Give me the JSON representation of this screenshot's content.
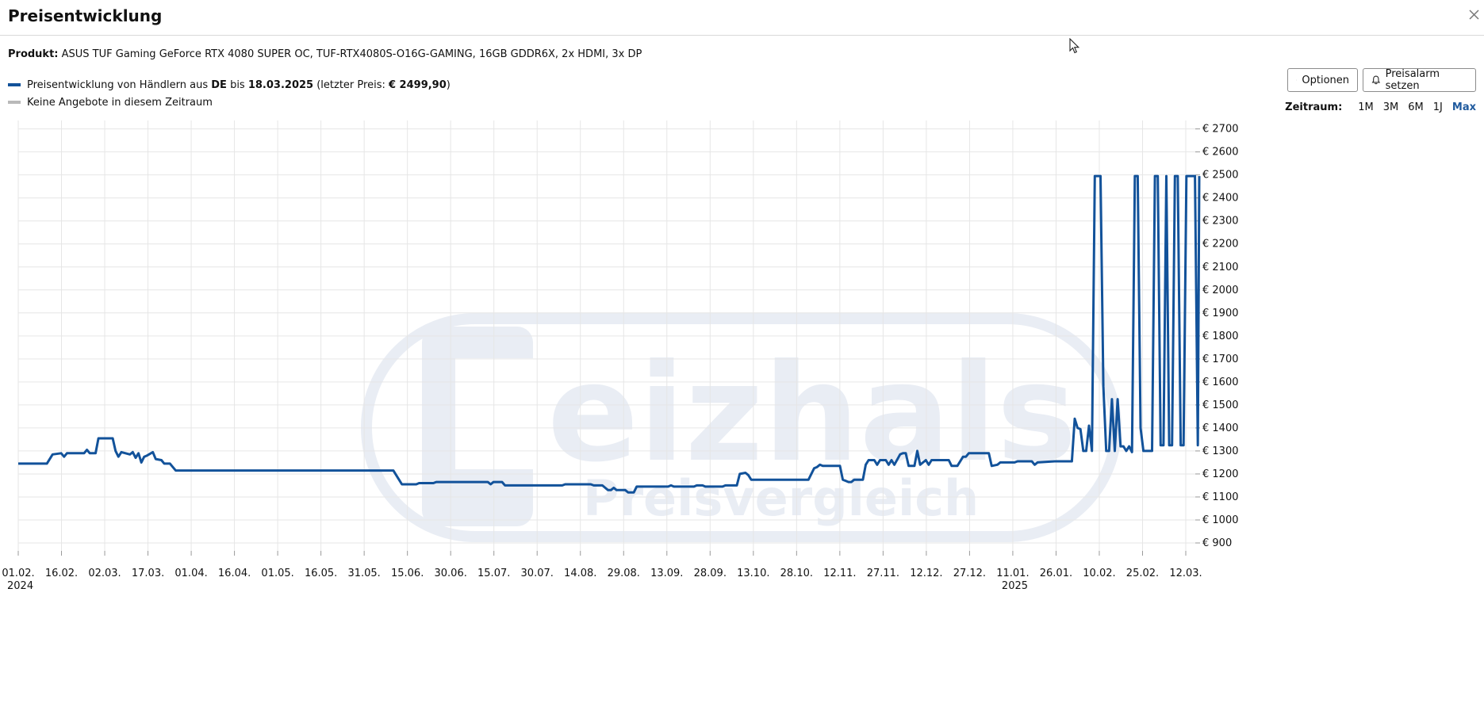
{
  "header": {
    "title": "Preisentwicklung"
  },
  "product": {
    "label": "Produkt:",
    "name": "ASUS TUF Gaming GeForce RTX 4080 SUPER OC, TUF-RTX4080S-O16G-GAMING, 16GB GDDR6X, 2x HDMI, 3x DP"
  },
  "legend": {
    "line1_prefix": "Preisentwicklung von Händlern aus",
    "line1_country": "DE",
    "line1_mid": "bis",
    "line1_date": "18.03.2025",
    "line1_lastprice_open": "(letzter Preis:",
    "line1_lastprice_value": "€ 2499,90",
    "line1_close": ")",
    "line2": "Keine Angebote in diesem Zeitraum",
    "color_main": "#12529a",
    "color_none": "#b9b9b9"
  },
  "toolbar": {
    "options_label": "Optionen",
    "alarm_label": "Preisalarm setzen"
  },
  "range": {
    "label": "Zeitraum:",
    "options": [
      "1M",
      "3M",
      "6M",
      "1J",
      "Max"
    ],
    "active": "Max"
  },
  "watermark": {
    "line1": "eizhals",
    "line2": "Preisvergleich"
  },
  "chart_data": {
    "type": "line",
    "x_tick_labels": [
      "01.02.",
      "16.02.",
      "02.03.",
      "17.03.",
      "01.04.",
      "16.04.",
      "01.05.",
      "16.05.",
      "31.05.",
      "15.06.",
      "30.06.",
      "15.07.",
      "30.07.",
      "14.08.",
      "29.08.",
      "13.09.",
      "28.09.",
      "13.10.",
      "28.10.",
      "12.11.",
      "27.11.",
      "12.12.",
      "27.12.",
      "11.01.",
      "26.01.",
      "10.02.",
      "25.02.",
      "12.03."
    ],
    "year_labels": [
      {
        "at": "01.02.",
        "year": "2024"
      },
      {
        "at": "11.01.",
        "year": "2025"
      }
    ],
    "y_tick_labels": [
      "€ 900",
      "€ 1000",
      "€ 1100",
      "€ 1200",
      "€ 1300",
      "€ 1400",
      "€ 1500",
      "€ 1600",
      "€ 1700",
      "€ 1800",
      "€ 1900",
      "€ 2000",
      "€ 2100",
      "€ 2200",
      "€ 2300",
      "€ 2400",
      "€ 2500",
      "€ 2600",
      "€ 2700"
    ],
    "ylim": [
      850,
      2700
    ],
    "xlim_days": [
      0,
      410
    ],
    "grid": true,
    "series": [
      {
        "color": "#12529a",
        "points": [
          [
            0,
            1245
          ],
          [
            10,
            1245
          ],
          [
            12,
            1285
          ],
          [
            15,
            1290
          ],
          [
            16,
            1275
          ],
          [
            17,
            1290
          ],
          [
            23,
            1290
          ],
          [
            24,
            1305
          ],
          [
            25,
            1290
          ],
          [
            27,
            1290
          ],
          [
            28,
            1355
          ],
          [
            33,
            1355
          ],
          [
            34,
            1300
          ],
          [
            35,
            1275
          ],
          [
            36,
            1295
          ],
          [
            39,
            1285
          ],
          [
            40,
            1295
          ],
          [
            41,
            1270
          ],
          [
            42,
            1290
          ],
          [
            43,
            1250
          ],
          [
            44,
            1275
          ],
          [
            45,
            1280
          ],
          [
            47,
            1295
          ],
          [
            48,
            1265
          ],
          [
            50,
            1260
          ],
          [
            51,
            1245
          ],
          [
            53,
            1245
          ],
          [
            55,
            1215
          ],
          [
            131,
            1215
          ],
          [
            133,
            1175
          ],
          [
            134,
            1155
          ],
          [
            139,
            1155
          ],
          [
            140,
            1160
          ],
          [
            145,
            1160
          ],
          [
            146,
            1165
          ],
          [
            164,
            1165
          ],
          [
            165,
            1155
          ],
          [
            166,
            1165
          ],
          [
            169,
            1165
          ],
          [
            170,
            1150
          ],
          [
            190,
            1150
          ],
          [
            191,
            1155
          ],
          [
            200,
            1155
          ],
          [
            201,
            1150
          ],
          [
            204,
            1150
          ],
          [
            206,
            1130
          ],
          [
            207,
            1130
          ],
          [
            208,
            1140
          ],
          [
            209,
            1130
          ],
          [
            212,
            1130
          ],
          [
            213,
            1120
          ],
          [
            215,
            1120
          ],
          [
            216,
            1145
          ],
          [
            227,
            1145
          ],
          [
            228,
            1150
          ],
          [
            229,
            1145
          ],
          [
            236,
            1145
          ],
          [
            237,
            1150
          ],
          [
            239,
            1150
          ],
          [
            240,
            1145
          ],
          [
            246,
            1145
          ],
          [
            247,
            1150
          ],
          [
            251,
            1150
          ],
          [
            252,
            1200
          ],
          [
            254,
            1205
          ],
          [
            255,
            1195
          ],
          [
            256,
            1175
          ],
          [
            276,
            1175
          ],
          [
            278,
            1225
          ],
          [
            279,
            1230
          ],
          [
            280,
            1240
          ],
          [
            281,
            1235
          ],
          [
            287,
            1235
          ],
          [
            288,
            1175
          ],
          [
            289,
            1170
          ],
          [
            290,
            1165
          ],
          [
            291,
            1165
          ],
          [
            292,
            1175
          ],
          [
            295,
            1175
          ],
          [
            296,
            1240
          ],
          [
            297,
            1260
          ],
          [
            299,
            1260
          ],
          [
            300,
            1240
          ],
          [
            301,
            1260
          ],
          [
            303,
            1260
          ],
          [
            304,
            1240
          ],
          [
            305,
            1260
          ],
          [
            306,
            1240
          ],
          [
            308,
            1285
          ],
          [
            309,
            1290
          ],
          [
            310,
            1290
          ],
          [
            311,
            1235
          ],
          [
            313,
            1235
          ],
          [
            314,
            1300
          ],
          [
            315,
            1240
          ],
          [
            317,
            1260
          ],
          [
            318,
            1240
          ],
          [
            319,
            1260
          ],
          [
            325,
            1260
          ],
          [
            326,
            1235
          ],
          [
            328,
            1235
          ],
          [
            330,
            1275
          ],
          [
            331,
            1275
          ],
          [
            332,
            1290
          ],
          [
            339,
            1290
          ],
          [
            340,
            1235
          ],
          [
            342,
            1240
          ],
          [
            343,
            1250
          ],
          [
            348,
            1250
          ],
          [
            349,
            1255
          ],
          [
            354,
            1255
          ],
          [
            355,
            1240
          ],
          [
            356,
            1250
          ],
          [
            362,
            1255
          ],
          [
            368,
            1255
          ],
          [
            369,
            1440
          ],
          [
            370,
            1400
          ],
          [
            371,
            1395
          ],
          [
            372,
            1300
          ],
          [
            373,
            1300
          ],
          [
            374,
            1410
          ],
          [
            375,
            1300
          ],
          [
            376,
            2495
          ],
          [
            378,
            2495
          ],
          [
            379,
            1580
          ],
          [
            380,
            1300
          ],
          [
            381,
            1300
          ],
          [
            382,
            1525
          ],
          [
            383,
            1300
          ],
          [
            384,
            1525
          ],
          [
            385,
            1320
          ],
          [
            386,
            1320
          ],
          [
            387,
            1300
          ],
          [
            388,
            1320
          ],
          [
            389,
            1295
          ],
          [
            390,
            2495
          ],
          [
            391,
            2495
          ],
          [
            392,
            1400
          ],
          [
            393,
            1300
          ],
          [
            396,
            1300
          ],
          [
            397,
            2495
          ],
          [
            398,
            2495
          ],
          [
            399,
            1325
          ],
          [
            400,
            1325
          ],
          [
            401,
            2495
          ],
          [
            402,
            1325
          ],
          [
            403,
            1325
          ],
          [
            404,
            2495
          ],
          [
            405,
            2495
          ],
          [
            406,
            1325
          ],
          [
            407,
            1325
          ],
          [
            408,
            2495
          ],
          [
            411,
            2495
          ],
          [
            412,
            1325
          ],
          [
            412.5,
            2495
          ]
        ]
      }
    ]
  }
}
